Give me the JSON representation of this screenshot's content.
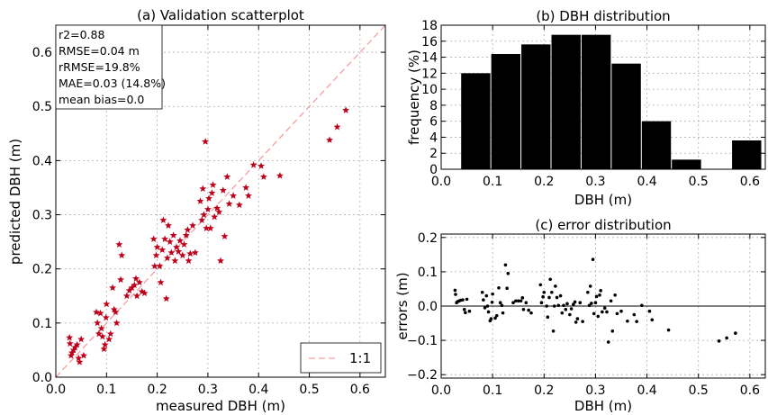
{
  "figure": {
    "colors": {
      "scatter_marker": "#c0001a",
      "one_to_one_line": "#f4a0a0",
      "bars": "#000000",
      "error_points": "#000000",
      "grid": "#b0b0b0"
    }
  },
  "chart_data": [
    {
      "type": "scatter",
      "title": "(a) Validation scatterplot",
      "xlabel": "measured DBH (m)",
      "ylabel": "predicted DBH (m)",
      "xlim": [
        0.0,
        0.65
      ],
      "ylim": [
        0.0,
        0.65
      ],
      "xticks": [
        "0.0",
        "0.1",
        "0.2",
        "0.3",
        "0.4",
        "0.5",
        "0.6"
      ],
      "yticks": [
        "0.0",
        "0.1",
        "0.2",
        "0.3",
        "0.4",
        "0.5",
        "0.6"
      ],
      "grid": true,
      "marker": "star",
      "stats": [
        "r2=0.88",
        "RMSE=0.04 m",
        "rRMSE=19.8%",
        "MAE=0.03 (14.8%)",
        "mean bias=0.0"
      ],
      "legend": {
        "placement": "bottom-right",
        "entries": [
          "1:1"
        ]
      },
      "points": [
        [
          0.027,
          0.073
        ],
        [
          0.028,
          0.062
        ],
        [
          0.03,
          0.04
        ],
        [
          0.032,
          0.045
        ],
        [
          0.035,
          0.05
        ],
        [
          0.038,
          0.055
        ],
        [
          0.042,
          0.06
        ],
        [
          0.045,
          0.035
        ],
        [
          0.047,
          0.028
        ],
        [
          0.05,
          0.07
        ],
        [
          0.055,
          0.04
        ],
        [
          0.08,
          0.12
        ],
        [
          0.082,
          0.1
        ],
        [
          0.085,
          0.08
        ],
        [
          0.088,
          0.118
        ],
        [
          0.09,
          0.09
        ],
        [
          0.092,
          0.075
        ],
        [
          0.095,
          0.052
        ],
        [
          0.097,
          0.06
        ],
        [
          0.099,
          0.11
        ],
        [
          0.1,
          0.135
        ],
        [
          0.105,
          0.07
        ],
        [
          0.108,
          0.08
        ],
        [
          0.112,
          0.165
        ],
        [
          0.115,
          0.125
        ],
        [
          0.118,
          0.12
        ],
        [
          0.12,
          0.1
        ],
        [
          0.125,
          0.245
        ],
        [
          0.128,
          0.18
        ],
        [
          0.13,
          0.225
        ],
        [
          0.14,
          0.15
        ],
        [
          0.145,
          0.16
        ],
        [
          0.15,
          0.165
        ],
        [
          0.155,
          0.17
        ],
        [
          0.158,
          0.182
        ],
        [
          0.16,
          0.15
        ],
        [
          0.165,
          0.175
        ],
        [
          0.17,
          0.158
        ],
        [
          0.175,
          0.155
        ],
        [
          0.193,
          0.255
        ],
        [
          0.195,
          0.205
        ],
        [
          0.198,
          0.225
        ],
        [
          0.2,
          0.24
        ],
        [
          0.205,
          0.205
        ],
        [
          0.207,
          0.175
        ],
        [
          0.21,
          0.235
        ],
        [
          0.212,
          0.29
        ],
        [
          0.215,
          0.255
        ],
        [
          0.218,
          0.145
        ],
        [
          0.22,
          0.22
        ],
        [
          0.222,
          0.28
        ],
        [
          0.225,
          0.25
        ],
        [
          0.228,
          0.23
        ],
        [
          0.232,
          0.262
        ],
        [
          0.235,
          0.215
        ],
        [
          0.238,
          0.24
        ],
        [
          0.242,
          0.232
        ],
        [
          0.245,
          0.252
        ],
        [
          0.25,
          0.225
        ],
        [
          0.253,
          0.245
        ],
        [
          0.257,
          0.262
        ],
        [
          0.26,
          0.272
        ],
        [
          0.262,
          0.215
        ],
        [
          0.265,
          0.228
        ],
        [
          0.27,
          0.28
        ],
        [
          0.275,
          0.23
        ],
        [
          0.285,
          0.325
        ],
        [
          0.288,
          0.29
        ],
        [
          0.29,
          0.348
        ],
        [
          0.292,
          0.3
        ],
        [
          0.295,
          0.435
        ],
        [
          0.297,
          0.275
        ],
        [
          0.3,
          0.31
        ],
        [
          0.302,
          0.33
        ],
        [
          0.305,
          0.275
        ],
        [
          0.308,
          0.34
        ],
        [
          0.31,
          0.355
        ],
        [
          0.313,
          0.296
        ],
        [
          0.318,
          0.312
        ],
        [
          0.322,
          0.305
        ],
        [
          0.325,
          0.215
        ],
        [
          0.33,
          0.345
        ],
        [
          0.333,
          0.26
        ],
        [
          0.338,
          0.37
        ],
        [
          0.342,
          0.32
        ],
        [
          0.35,
          0.335
        ],
        [
          0.362,
          0.318
        ],
        [
          0.375,
          0.35
        ],
        [
          0.38,
          0.335
        ],
        [
          0.39,
          0.392
        ],
        [
          0.405,
          0.39
        ],
        [
          0.41,
          0.37
        ],
        [
          0.442,
          0.372
        ],
        [
          0.54,
          0.438
        ],
        [
          0.555,
          0.462
        ],
        [
          0.572,
          0.493
        ]
      ]
    },
    {
      "type": "bar",
      "title": "(b) DBH distribution",
      "xlabel": "DBH (m)",
      "ylabel": "frequency (%)",
      "xlim": [
        0.0,
        0.63
      ],
      "ylim": [
        0,
        18
      ],
      "xticks": [
        "0.0",
        "0.1",
        "0.2",
        "0.3",
        "0.4",
        "0.5",
        "0.6"
      ],
      "yticks": [
        "0",
        "2",
        "4",
        "6",
        "8",
        "10",
        "12",
        "14",
        "16",
        "18"
      ],
      "grid": true,
      "bin_edges": [
        0.038,
        0.0965,
        0.155,
        0.2135,
        0.272,
        0.3305,
        0.389,
        0.4475,
        0.506,
        0.5645,
        0.623
      ],
      "values": [
        12.0,
        14.4,
        15.6,
        16.8,
        16.8,
        13.2,
        6.0,
        1.2,
        0.0,
        3.6
      ]
    },
    {
      "type": "scatter",
      "title": "(c) error distribution",
      "xlabel": "DBH (m)",
      "ylabel": "errors (m)",
      "xlim": [
        0.0,
        0.63
      ],
      "ylim": [
        -0.21,
        0.21
      ],
      "xticks": [
        "0.0",
        "0.1",
        "0.2",
        "0.3",
        "0.4",
        "0.5",
        "0.6"
      ],
      "yticks": [
        "−0.2",
        "−0.1",
        "0.0",
        "0.1",
        "0.2"
      ],
      "grid": true,
      "zero_line": true,
      "marker": "dot",
      "points": [
        [
          0.027,
          0.046
        ],
        [
          0.028,
          0.034
        ],
        [
          0.03,
          0.01
        ],
        [
          0.032,
          0.013
        ],
        [
          0.035,
          0.015
        ],
        [
          0.038,
          0.017
        ],
        [
          0.042,
          0.018
        ],
        [
          0.045,
          -0.01
        ],
        [
          0.047,
          -0.019
        ],
        [
          0.05,
          0.02
        ],
        [
          0.055,
          -0.015
        ],
        [
          0.08,
          0.04
        ],
        [
          0.082,
          0.018
        ],
        [
          0.085,
          -0.005
        ],
        [
          0.088,
          0.03
        ],
        [
          0.09,
          0.0
        ],
        [
          0.092,
          -0.017
        ],
        [
          0.095,
          -0.043
        ],
        [
          0.097,
          -0.037
        ],
        [
          0.099,
          0.011
        ],
        [
          0.1,
          0.035
        ],
        [
          0.105,
          -0.035
        ],
        [
          0.108,
          -0.028
        ],
        [
          0.112,
          0.053
        ],
        [
          0.115,
          0.01
        ],
        [
          0.118,
          0.002
        ],
        [
          0.12,
          -0.02
        ],
        [
          0.125,
          0.12
        ],
        [
          0.128,
          0.052
        ],
        [
          0.13,
          0.095
        ],
        [
          0.14,
          0.01
        ],
        [
          0.145,
          0.015
        ],
        [
          0.15,
          0.015
        ],
        [
          0.155,
          0.015
        ],
        [
          0.158,
          0.024
        ],
        [
          0.16,
          -0.01
        ],
        [
          0.165,
          0.01
        ],
        [
          0.17,
          -0.012
        ],
        [
          0.175,
          -0.02
        ],
        [
          0.193,
          0.062
        ],
        [
          0.195,
          0.01
        ],
        [
          0.198,
          0.027
        ],
        [
          0.2,
          0.04
        ],
        [
          0.205,
          0.0
        ],
        [
          0.207,
          -0.032
        ],
        [
          0.21,
          0.025
        ],
        [
          0.212,
          0.078
        ],
        [
          0.215,
          0.04
        ],
        [
          0.218,
          -0.073
        ],
        [
          0.22,
          0.0
        ],
        [
          0.222,
          0.058
        ],
        [
          0.225,
          0.025
        ],
        [
          0.228,
          0.002
        ],
        [
          0.232,
          0.03
        ],
        [
          0.235,
          -0.02
        ],
        [
          0.238,
          0.002
        ],
        [
          0.242,
          -0.01
        ],
        [
          0.245,
          0.007
        ],
        [
          0.25,
          -0.025
        ],
        [
          0.253,
          -0.008
        ],
        [
          0.257,
          0.005
        ],
        [
          0.26,
          0.012
        ],
        [
          0.262,
          -0.047
        ],
        [
          0.265,
          -0.037
        ],
        [
          0.27,
          0.01
        ],
        [
          0.275,
          -0.045
        ],
        [
          0.285,
          0.04
        ],
        [
          0.288,
          0.002
        ],
        [
          0.29,
          0.058
        ],
        [
          0.292,
          0.008
        ],
        [
          0.295,
          0.136
        ],
        [
          0.297,
          -0.022
        ],
        [
          0.3,
          0.01
        ],
        [
          0.302,
          0.028
        ],
        [
          0.305,
          -0.03
        ],
        [
          0.308,
          0.032
        ],
        [
          0.31,
          0.045
        ],
        [
          0.313,
          -0.017
        ],
        [
          0.318,
          -0.006
        ],
        [
          0.322,
          -0.017
        ],
        [
          0.325,
          -0.105
        ],
        [
          0.33,
          0.015
        ],
        [
          0.333,
          -0.073
        ],
        [
          0.338,
          0.032
        ],
        [
          0.342,
          -0.022
        ],
        [
          0.35,
          -0.015
        ],
        [
          0.362,
          -0.044
        ],
        [
          0.375,
          -0.025
        ],
        [
          0.38,
          -0.045
        ],
        [
          0.39,
          0.002
        ],
        [
          0.405,
          -0.015
        ],
        [
          0.41,
          -0.04
        ],
        [
          0.442,
          -0.07
        ],
        [
          0.54,
          -0.102
        ],
        [
          0.555,
          -0.093
        ],
        [
          0.572,
          -0.079
        ]
      ]
    }
  ]
}
